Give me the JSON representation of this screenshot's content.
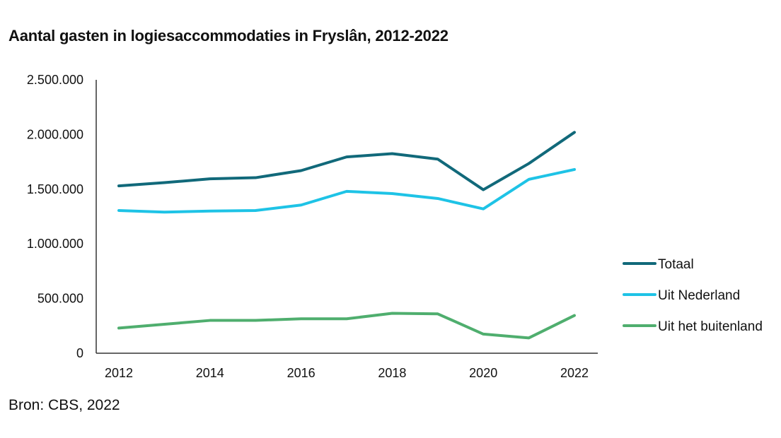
{
  "title": "Aantal gasten in logiesaccommodaties in Fryslân, 2012-2022",
  "source": "Bron: CBS, 2022",
  "chart_data": {
    "type": "line",
    "title": "Aantal gasten in logiesaccommodaties in Fryslân, 2012-2022",
    "x": [
      2012,
      2013,
      2014,
      2015,
      2016,
      2017,
      2018,
      2019,
      2020,
      2021,
      2022
    ],
    "x_tick_labels": [
      "2012",
      "2014",
      "2016",
      "2018",
      "2020",
      "2022"
    ],
    "y_tick_labels": [
      "0",
      "500.000",
      "1.000.000",
      "1.500.000",
      "2.000.000",
      "2.500.000"
    ],
    "y_ticks": [
      0,
      500000,
      1000000,
      1500000,
      2000000,
      2500000
    ],
    "ylim": [
      0,
      2500000
    ],
    "xlabel": "",
    "ylabel": "",
    "grid": false,
    "legend_position": "right",
    "series": [
      {
        "name": "Totaal",
        "color": "#11697a",
        "values": [
          1530000,
          1560000,
          1595000,
          1605000,
          1670000,
          1795000,
          1825000,
          1775000,
          1495000,
          1735000,
          2020000
        ]
      },
      {
        "name": "Uit Nederland",
        "color": "#1ec3e6",
        "values": [
          1305000,
          1290000,
          1300000,
          1305000,
          1355000,
          1480000,
          1460000,
          1415000,
          1320000,
          1590000,
          1680000
        ]
      },
      {
        "name": "Uit het buitenland",
        "color": "#4fae6e",
        "values": [
          230000,
          265000,
          300000,
          300000,
          315000,
          315000,
          365000,
          360000,
          175000,
          140000,
          345000
        ]
      }
    ]
  }
}
